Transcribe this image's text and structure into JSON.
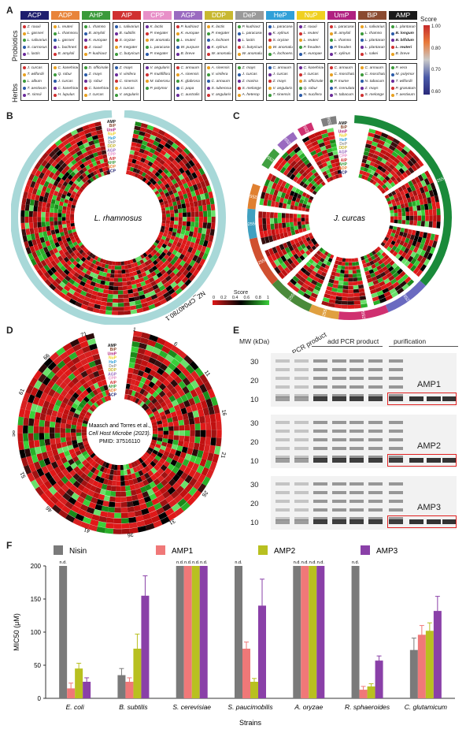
{
  "panels": {
    "a": "A",
    "b": "B",
    "c": "C",
    "d": "D",
    "e": "E",
    "f": "F"
  },
  "panelA": {
    "headers": [
      {
        "label": "ACP",
        "color": "#1e1e6e"
      },
      {
        "label": "ADP",
        "color": "#e8843a"
      },
      {
        "label": "AHP",
        "color": "#3a9a3a"
      },
      {
        "label": "AIP",
        "color": "#d03030"
      },
      {
        "label": "CPP",
        "color": "#e890c8"
      },
      {
        "label": "AGP",
        "color": "#9a6ac0"
      },
      {
        "label": "DDP",
        "color": "#c8b830"
      },
      {
        "label": "DeP",
        "color": "#9a9a9a"
      },
      {
        "label": "HeP",
        "color": "#30a0d8"
      },
      {
        "label": "NuP",
        "color": "#f0d020"
      },
      {
        "label": "UmP",
        "color": "#b02080"
      },
      {
        "label": "BiP",
        "color": "#8a4a30"
      },
      {
        "label": "AMP",
        "color": "#1a1a1a"
      }
    ],
    "score_title": "Score",
    "score_ticks": [
      "1.00",
      "0.80",
      "0.70",
      "0.60"
    ],
    "rows": [
      {
        "label": "Probiotics",
        "cells": [
          [
            "Z. rouxii",
            "L. gasseri",
            "L. salivarius",
            "S. carnosus",
            "L. lactis"
          ],
          [
            "L. reuteri",
            "L. rhamnosus",
            "L. gasseri",
            "L. buchneri",
            "B. amyloli"
          ],
          [
            "L. rhamno",
            "B. amyloli",
            "K. europae",
            "Z. rouxii",
            "P. kudriavz"
          ],
          [
            "L. salivarius",
            "B. subtilis",
            "S. oryzae",
            "P. megater",
            "C. butyricum"
          ],
          [
            "K. lactis",
            "P. megater",
            "W. anomalus",
            "L. paracasei",
            "P. megater"
          ],
          [
            "P. kudriavz",
            "K. europae",
            "L. reuteri",
            "W. purpure",
            "B. breve"
          ],
          [
            "K. lactis",
            "P. megater",
            "A. lochoen",
            "K. xylinus",
            "W. anomalus"
          ],
          [
            "P. kudriavz",
            "L. paracasei",
            "L. lactis",
            "C. butyricum",
            "W. anomalus"
          ],
          [
            "L. paracasei",
            "K. xylinus",
            "S. oryzae",
            "W. anomalus",
            "A. lochoensis"
          ],
          [
            "Z. rouxii",
            "L. reuteri",
            "L. reuteri",
            "P. freuden",
            "K. europae"
          ],
          [
            "L. paracasei",
            "B. amyloli",
            "L. rhamno",
            "P. freuden",
            "K. xylinus"
          ],
          [
            "L. salivarius",
            "L. rhamno",
            "L. plantarum",
            "L. plantarum",
            "L. sakei"
          ],
          [
            "L. plantarum",
            "B. longum",
            "B. bifidum",
            "L. reuteri",
            "B. breve"
          ]
        ]
      },
      {
        "label": "Herbs",
        "cells": [
          [
            "J. curcas",
            "T. wilfordii",
            "L. album",
            "T. aestivum",
            "R. simsii"
          ],
          [
            "C. kanehirae",
            "Q. robur",
            "J. curcas",
            "C. kanehirae",
            "H. lupulus"
          ],
          [
            "D. officinale",
            "Z. mays",
            "Q. robur",
            "C. kanehirae",
            "J. curcas"
          ],
          [
            "Z. mays",
            "V. vinifera",
            "C. sinensis",
            "J. curcas",
            "V. angularis"
          ],
          [
            "V. angularis",
            "P. mutififlora",
            "M. tuberosum",
            "P. polymor"
          ],
          [
            "C. annuum",
            "A. sinensis",
            "K. glabrosa",
            "C. papa",
            "C. australis"
          ],
          [
            "A. sinensis",
            "V. vinifera",
            "C. annuum",
            "S. tuberosum",
            "V. angularis"
          ],
          [
            "Z. mays",
            "J. curcas",
            "Z. marina",
            "S. melonge",
            "A. heterop"
          ],
          [
            "C. annuum",
            "J. curcas",
            "Z. mays",
            "V. angularis",
            "T. sinensis"
          ],
          [
            "C. kanehirae",
            "J. curcas",
            "D. officinale",
            "Q. robur",
            "N. nucifera"
          ],
          [
            "C. annuum",
            "C. moschata",
            "P. mume",
            "R. crenulata",
            "N. tabacum"
          ],
          [
            "C. annuum",
            "C. moschata",
            "N. tabacum",
            "Z. mays",
            "S. melonge"
          ],
          [
            "P. vera",
            "M. polymor",
            "T. wilfordii",
            "P. granatum",
            "T. aestivum"
          ]
        ]
      }
    ]
  },
  "panelB": {
    "center": "L. rhamnosus",
    "ring": "NZ_CP040780.1"
  },
  "panelC": {
    "center": "J. curcas",
    "ring_segments": [
      "NW_025565413",
      "NW_025565427",
      "NW_025565415",
      "NW_025565420",
      "NW_025565433",
      "NW_025565425",
      "NW_025565412",
      "NW_025565410",
      "NW_025565419",
      "NW_025565430",
      "NW_025565422",
      "NW_025565432.1"
    ]
  },
  "panelBC_scale": {
    "title": "Score",
    "ticks": [
      "0",
      "0.2",
      "0.4",
      "0.6",
      "0.8",
      "1"
    ]
  },
  "panelD": {
    "center_line1": "Maasch and Torres et al.,",
    "center_line2": "Cell Host Microbe (2023).",
    "center_line3": "PMID: 37516110",
    "ticks": [
      "1",
      "6",
      "11",
      "16",
      "21",
      "26",
      "31",
      "36",
      "41",
      "46",
      "51",
      "56",
      "61",
      "66",
      "71"
    ]
  },
  "ring_legend": [
    {
      "label": "AMP",
      "color": "#1a1a1a"
    },
    {
      "label": "BiP",
      "color": "#8a4a30"
    },
    {
      "label": "UmP",
      "color": "#b02080"
    },
    {
      "label": "NuP",
      "color": "#f0d020"
    },
    {
      "label": "HeP",
      "color": "#30a0d8"
    },
    {
      "label": "DeP",
      "color": "#9a9a9a"
    },
    {
      "label": "DDP",
      "color": "#c8b830"
    },
    {
      "label": "AGP",
      "color": "#9a6ac0"
    },
    {
      "label": "CPP",
      "color": "#e890c8"
    },
    {
      "label": "AIP",
      "color": "#d03030"
    },
    {
      "label": "AHP",
      "color": "#3a9a3a"
    },
    {
      "label": "ADP",
      "color": "#e8843a"
    },
    {
      "label": "ACP",
      "color": "#1e1e6e"
    }
  ],
  "panelE": {
    "mw_label": "MW (kDa)",
    "lane_groups": [
      "no PCR product",
      "add PCR product",
      "purification"
    ],
    "gels": [
      {
        "label": "AMP1",
        "ticks": [
          "30",
          "20",
          "10"
        ]
      },
      {
        "label": "AMP2",
        "ticks": [
          "30",
          "20",
          "10"
        ]
      },
      {
        "label": "AMP3",
        "ticks": [
          "30",
          "20",
          "10"
        ]
      }
    ]
  },
  "chart_data": {
    "type": "bar",
    "title": "",
    "xlabel": "Strains",
    "ylabel": "MIC50 (μM)",
    "ylim": [
      0,
      200
    ],
    "yticks": [
      0,
      50,
      100,
      150,
      200
    ],
    "categories": [
      "E. coli",
      "B. subtilis",
      "S. cerevisiae",
      "S. paucimobilis",
      "A. oryzae",
      "R. sphaeroides",
      "C. glutamicum"
    ],
    "series": [
      {
        "name": "Nisin",
        "color": "#7a7a7a",
        "values": [
          200,
          35,
          200,
          200,
          200,
          200,
          73
        ],
        "errors": [
          0,
          10,
          0,
          0,
          0,
          0,
          18
        ],
        "nd": [
          true,
          false,
          true,
          true,
          true,
          true,
          false
        ]
      },
      {
        "name": "AMP1",
        "color": "#f07878",
        "values": [
          15,
          25,
          200,
          75,
          200,
          13,
          96
        ],
        "errors": [
          8,
          6,
          0,
          10,
          0,
          5,
          14
        ],
        "nd": [
          false,
          false,
          true,
          false,
          true,
          false,
          false
        ]
      },
      {
        "name": "AMP2",
        "color": "#b8c020",
        "values": [
          45,
          75,
          200,
          25,
          200,
          18,
          102
        ],
        "errors": [
          8,
          22,
          0,
          5,
          0,
          4,
          12
        ],
        "nd": [
          false,
          false,
          true,
          false,
          true,
          false,
          false
        ]
      },
      {
        "name": "AMP3",
        "color": "#8a40a8",
        "values": [
          25,
          155,
          200,
          140,
          200,
          57,
          132
        ],
        "errors": [
          6,
          30,
          0,
          40,
          0,
          7,
          22
        ],
        "nd": [
          false,
          false,
          true,
          false,
          true,
          false,
          false
        ]
      }
    ],
    "nd_label": "n.d."
  }
}
